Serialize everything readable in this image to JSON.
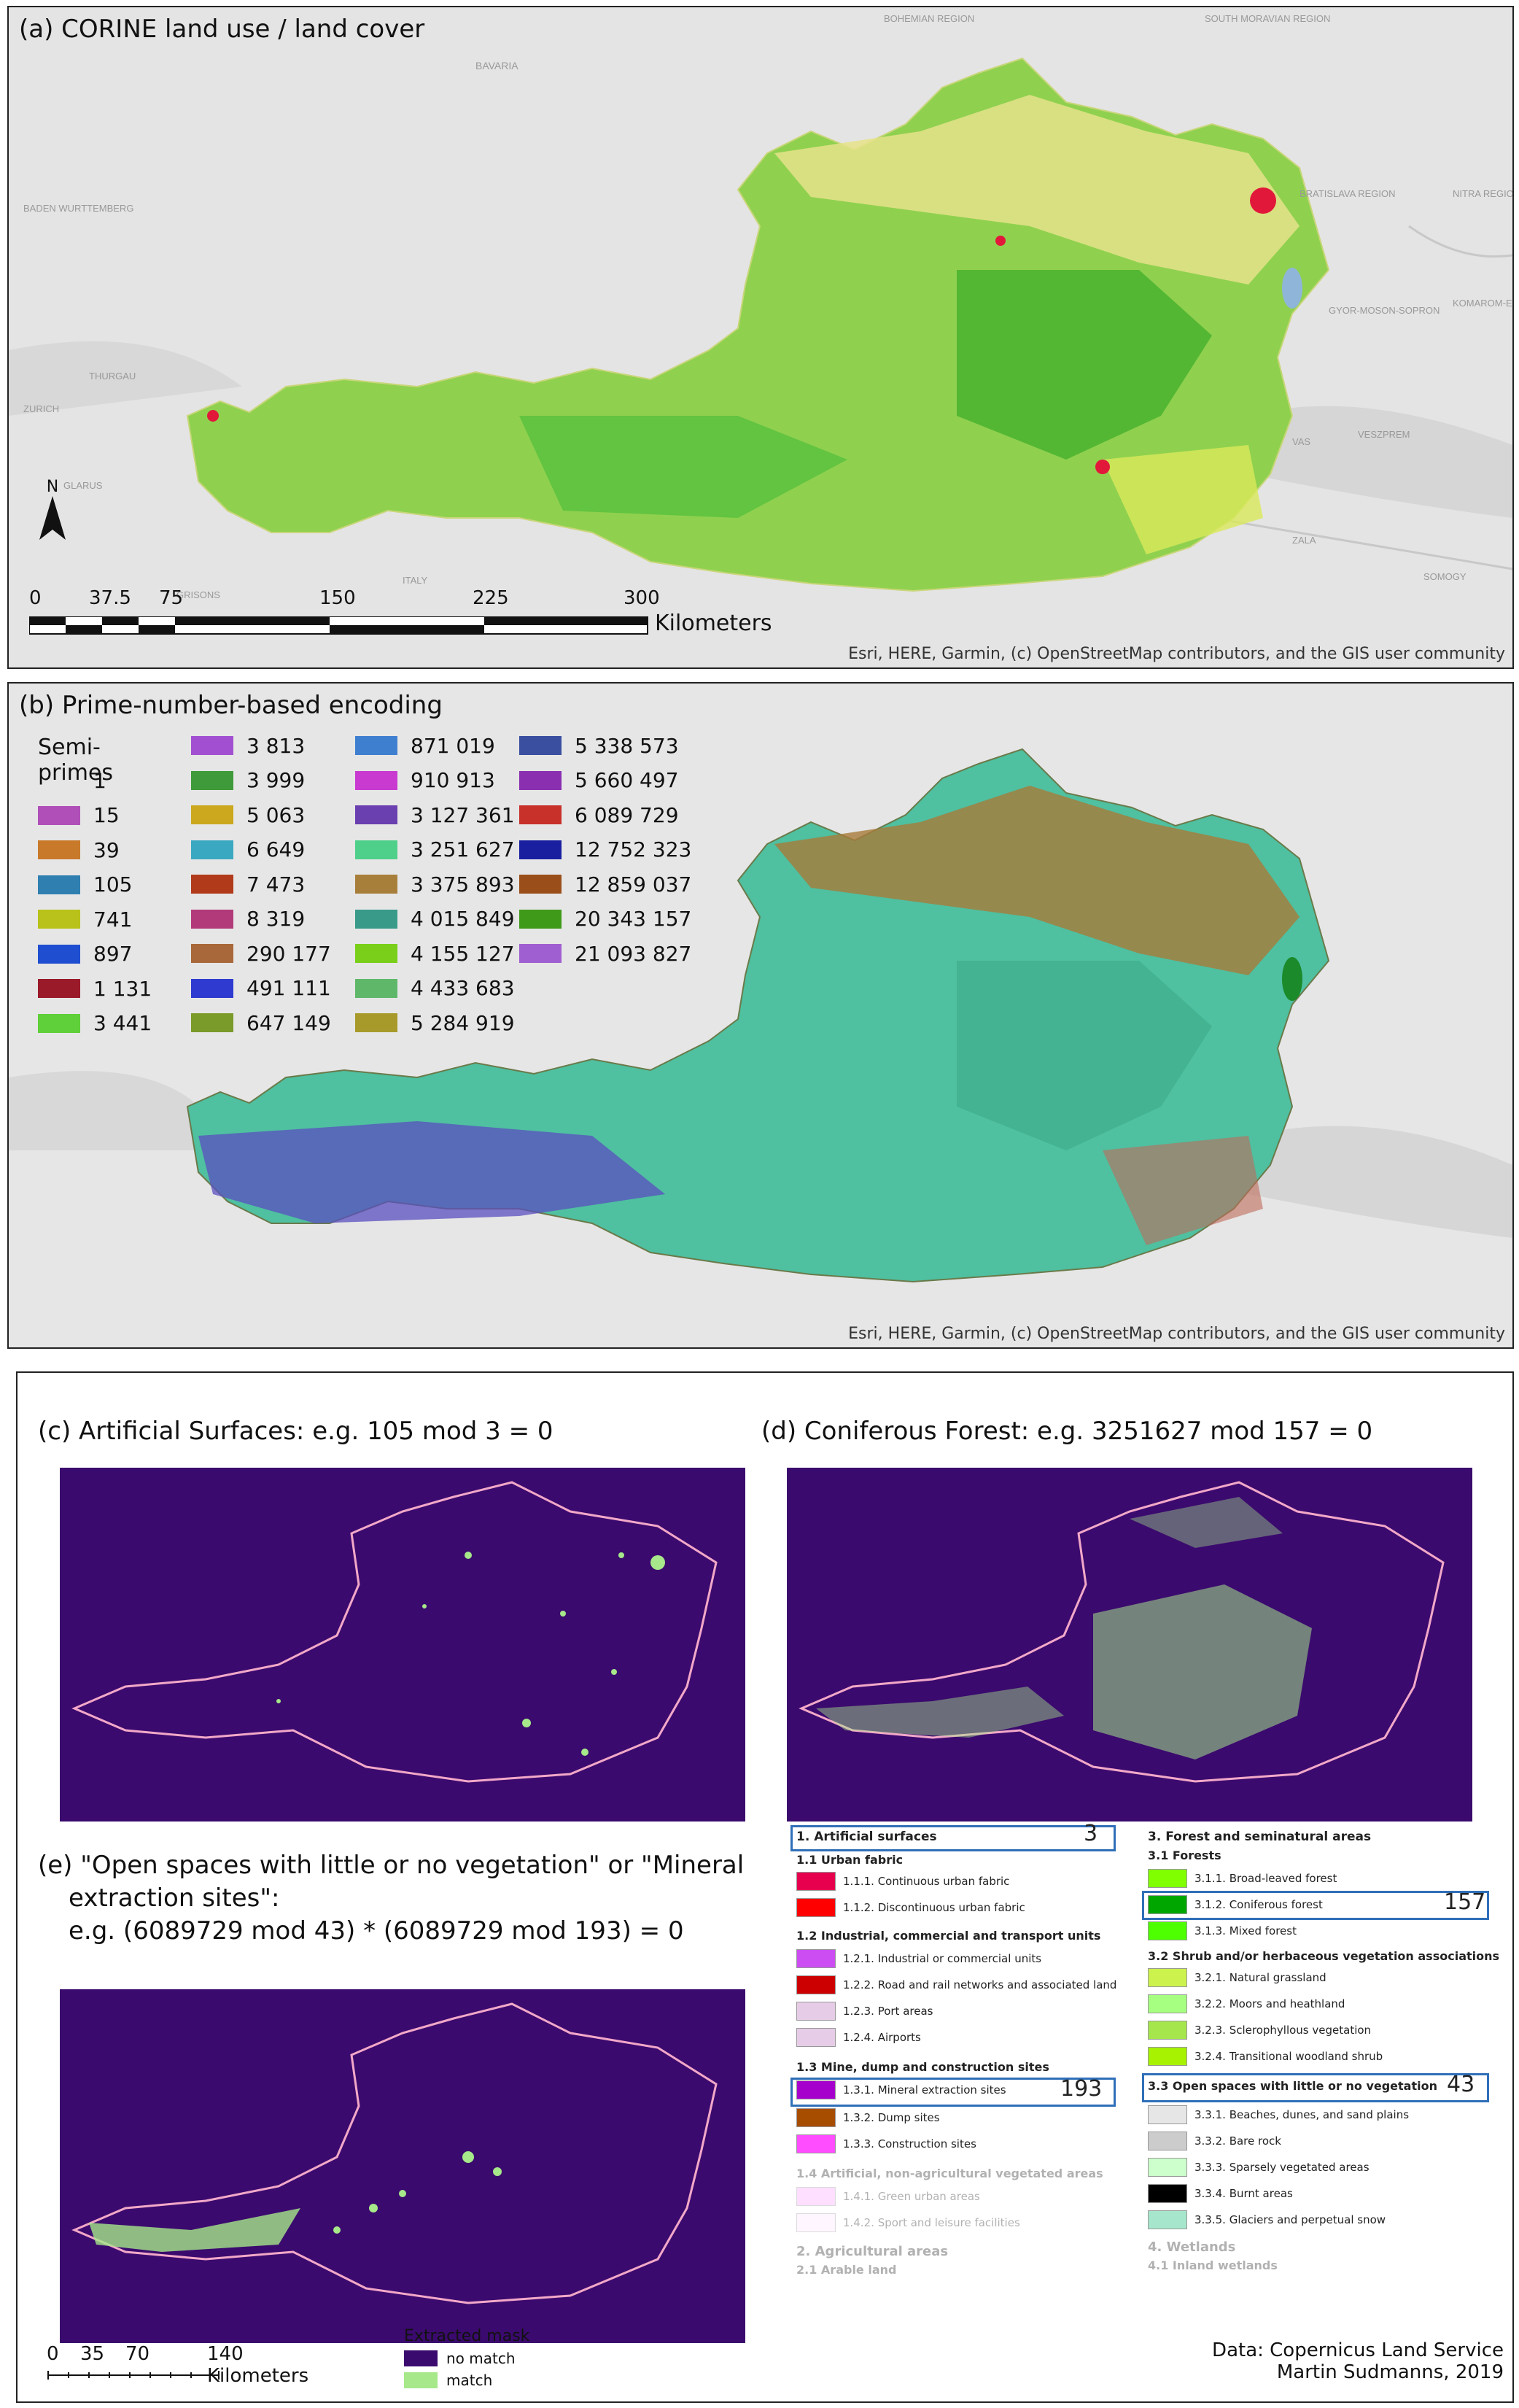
{
  "panel_a": {
    "title": "(a) CORINE land use / land cover",
    "attribution": "Esri, HERE, Garmin, (c) OpenStreetMap contributors, and the GIS user community",
    "north_label": "N",
    "scale_ticks": [
      "0",
      "37.5",
      "75",
      "150",
      "225",
      "300"
    ],
    "scale_unit": "Kilometers",
    "basemap_labels": [
      "BAVARIA",
      "BOHEMIAN REGION",
      "SOUTH MORAVIAN REGION",
      "BADEN WURTTEMBERG",
      "BRATISLAVA REGION",
      "NITRA REGION",
      "ZURICH",
      "THURGAU",
      "GYOR-MOSON-SOPRON",
      "KOMAROM-ESZTERGOM",
      "VAS",
      "VESZPREM",
      "ZALA",
      "SOMOGY",
      "GLARUS",
      "GRISONS",
      "ITALY"
    ]
  },
  "panel_b": {
    "title": "(b) Prime-number-based encoding",
    "attribution": "Esri, HERE, Garmin, (c) OpenStreetMap contributors, and the GIS user community",
    "legend_title": "Semi-primes",
    "legend_col1": [
      {
        "label": "1",
        "color": ""
      },
      {
        "label": "15",
        "color": "#b04fb8"
      },
      {
        "label": "39",
        "color": "#c87a2a"
      },
      {
        "label": "105",
        "color": "#2f7fb0"
      },
      {
        "label": "741",
        "color": "#b8c21a"
      },
      {
        "label": "897",
        "color": "#1f4fd0"
      },
      {
        "label": "1 131",
        "color": "#9a1a2a"
      },
      {
        "label": "3 441",
        "color": "#5fcf3a"
      }
    ],
    "legend_col2": [
      {
        "label": "3 813",
        "color": "#a24fd2"
      },
      {
        "label": "3 999",
        "color": "#3f9a3a"
      },
      {
        "label": "5 063",
        "color": "#cba81e"
      },
      {
        "label": "6 649",
        "color": "#3aa8c0"
      },
      {
        "label": "7 473",
        "color": "#b03a1a"
      },
      {
        "label": "8 319",
        "color": "#b23a7a"
      },
      {
        "label": "290 177",
        "color": "#a8683a"
      },
      {
        "label": "491 111",
        "color": "#2f3ad0"
      },
      {
        "label": "647 149",
        "color": "#7a9a2a"
      }
    ],
    "legend_col3": [
      {
        "label": "871 019",
        "color": "#3f7fd0"
      },
      {
        "label": "910 913",
        "color": "#c83ad0"
      },
      {
        "label": "3 127 361",
        "color": "#6a3fb0"
      },
      {
        "label": "3 251 627",
        "color": "#4fd08a"
      },
      {
        "label": "3 375 893",
        "color": "#a87f3a"
      },
      {
        "label": "4 015 849",
        "color": "#3a9a8a"
      },
      {
        "label": "4 155 127",
        "color": "#7acf1a"
      },
      {
        "label": "4 433 683",
        "color": "#5fb86a"
      },
      {
        "label": "5 284 919",
        "color": "#a89a2a"
      }
    ],
    "legend_col4": [
      {
        "label": "5 338 573",
        "color": "#3a4fa0"
      },
      {
        "label": "5 660 497",
        "color": "#8a2fb0"
      },
      {
        "label": "6 089 729",
        "color": "#c8302a"
      },
      {
        "label": "12 752 323",
        "color": "#1a1fa0"
      },
      {
        "label": "12 859 037",
        "color": "#9a4f1a"
      },
      {
        "label": "20 343 157",
        "color": "#3f9a1a"
      },
      {
        "label": "21 093 827",
        "color": "#a05fd0"
      }
    ]
  },
  "panel_c": {
    "title": "(c) Artificial Surfaces: e.g. 105 mod 3 = 0"
  },
  "panel_d": {
    "title": "(d) Coniferous Forest: e.g. 3251627 mod 157 = 0"
  },
  "panel_e": {
    "title_line1": "(e) \"Open spaces with little or no vegetation\" or \"Mineral",
    "title_line2": "extraction sites\":",
    "title_line3": "e.g. (6089729 mod 43) * (6089729 mod 193) = 0"
  },
  "clc_legend": {
    "h1": "1. Artificial surfaces",
    "h1_prime": "3",
    "h1_1": "1.1 Urban fabric",
    "i111": "1.1.1. Continuous urban fabric",
    "i112": "1.1.2. Discontinuous urban fabric",
    "h1_2": "1.2 Industrial, commercial and transport units",
    "i121": "1.2.1. Industrial or commercial units",
    "i122": "1.2.2. Road and rail networks and associated land",
    "i123": "1.2.3. Port areas",
    "i124": "1.2.4. Airports",
    "h1_3": "1.3 Mine, dump and construction sites",
    "i131": "1.3.1. Mineral extraction sites",
    "i131_prime": "193",
    "i132": "1.3.2. Dump sites",
    "i133": "1.3.3. Construction sites",
    "h1_4": "1.4 Artificial, non-agricultural vegetated areas",
    "i141": "1.4.1. Green urban areas",
    "i142": "1.4.2. Sport and leisure facilities",
    "h2": "2. Agricultural areas",
    "h2_1": "2.1 Arable land",
    "h3": "3. Forest and seminatural areas",
    "h3_1": "3.1 Forests",
    "i311": "3.1.1. Broad-leaved forest",
    "i312": "3.1.2. Coniferous forest",
    "i312_prime": "157",
    "i313": "3.1.3. Mixed forest",
    "h3_2": "3.2 Shrub and/or herbaceous vegetation associations",
    "i321": "3.2.1. Natural grassland",
    "i322": "3.2.2. Moors and heathland",
    "i323": "3.2.3. Sclerophyllous vegetation",
    "i324": "3.2.4. Transitional woodland shrub",
    "h3_3": "3.3 Open spaces with little or no vegetation",
    "h3_3_prime": "43",
    "i331": "3.3.1. Beaches, dunes, and sand plains",
    "i332": "3.3.2. Bare rock",
    "i333": "3.3.3. Sparsely vegetated areas",
    "i334": "3.3.4. Burnt areas",
    "i335": "3.3.5. Glaciers and perpetual snow",
    "h4": "4. Wetlands",
    "h4_1": "4.1 Inland wetlands"
  },
  "bottom_scale": {
    "ticks": [
      "0",
      "35",
      "70",
      "140 Kilometers"
    ]
  },
  "mask_legend": {
    "title": "Extracted mask",
    "no_match": "no match",
    "match": "match",
    "no_match_color": "#3b0a6e",
    "match_color": "#a6e88a"
  },
  "credits": {
    "line1": "Data: Copernicus Land Service",
    "line2": "Martin Sudmanns, 2019"
  }
}
